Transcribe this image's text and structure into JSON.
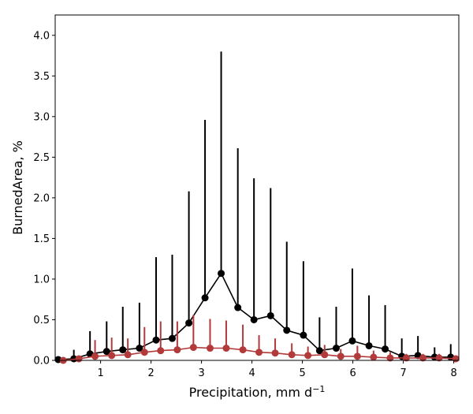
{
  "chart_data": {
    "type": "line",
    "title": "",
    "xlabel": "Precipitation,  mm d",
    "xlabel_sup": "−1",
    "ylabel": "BurnedArea,  %",
    "xlim": [
      0.1,
      8.1
    ],
    "ylim": [
      0,
      4.25
    ],
    "xticks": [
      1,
      2,
      3,
      4,
      5,
      6,
      7,
      8
    ],
    "xtick_labels": [
      "1",
      "2",
      "3",
      "4",
      "5",
      "6",
      "7",
      "8"
    ],
    "yticks": [
      0,
      0.5,
      1.0,
      1.5,
      2.0,
      2.5,
      3.0,
      3.5,
      4.0
    ],
    "ytick_labels": [
      "0.0",
      "0.5",
      "1.0",
      "1.5",
      "2.0",
      "2.5",
      "3.0",
      "3.5",
      "4.0"
    ],
    "grid": false,
    "legend": "none",
    "series": [
      {
        "color": "#000000",
        "x": [
          0.16,
          0.47,
          0.79,
          1.12,
          1.44,
          1.77,
          2.1,
          2.42,
          2.75,
          3.07,
          3.39,
          3.72,
          4.04,
          4.37,
          4.69,
          5.02,
          5.34,
          5.67,
          5.99,
          6.32,
          6.64,
          6.97,
          7.29,
          7.62,
          7.94
        ],
        "y": [
          0.01,
          0.02,
          0.08,
          0.11,
          0.13,
          0.15,
          0.25,
          0.27,
          0.46,
          0.77,
          1.07,
          0.65,
          0.5,
          0.55,
          0.37,
          0.31,
          0.12,
          0.15,
          0.24,
          0.18,
          0.14,
          0.05,
          0.06,
          0.04,
          0.04
        ],
        "err_upper": [
          0.02,
          0.11,
          0.28,
          0.37,
          0.53,
          0.56,
          1.02,
          1.03,
          1.62,
          2.19,
          2.73,
          1.96,
          1.74,
          1.57,
          1.09,
          0.91,
          0.41,
          0.51,
          0.89,
          0.62,
          0.54,
          0.22,
          0.24,
          0.12,
          0.16
        ]
      },
      {
        "color": "#b23a3a",
        "x": [
          0.26,
          0.57,
          0.89,
          1.22,
          1.54,
          1.87,
          2.19,
          2.52,
          2.84,
          3.17,
          3.49,
          3.82,
          4.14,
          4.46,
          4.79,
          5.11,
          5.44,
          5.76,
          6.09,
          6.41,
          6.74,
          7.06,
          7.39,
          7.71,
          8.04
        ],
        "y": [
          0.0,
          0.02,
          0.05,
          0.06,
          0.07,
          0.1,
          0.12,
          0.13,
          0.16,
          0.15,
          0.15,
          0.13,
          0.1,
          0.09,
          0.07,
          0.06,
          0.07,
          0.05,
          0.05,
          0.04,
          0.03,
          0.03,
          0.03,
          0.03,
          0.02
        ],
        "err_upper": [
          0.0,
          0.04,
          0.2,
          0.22,
          0.2,
          0.31,
          0.36,
          0.35,
          0.4,
          0.36,
          0.34,
          0.31,
          0.21,
          0.18,
          0.14,
          0.11,
          0.12,
          0.09,
          0.13,
          0.08,
          0.07,
          0.05,
          0.05,
          0.05,
          0.04
        ]
      }
    ]
  }
}
